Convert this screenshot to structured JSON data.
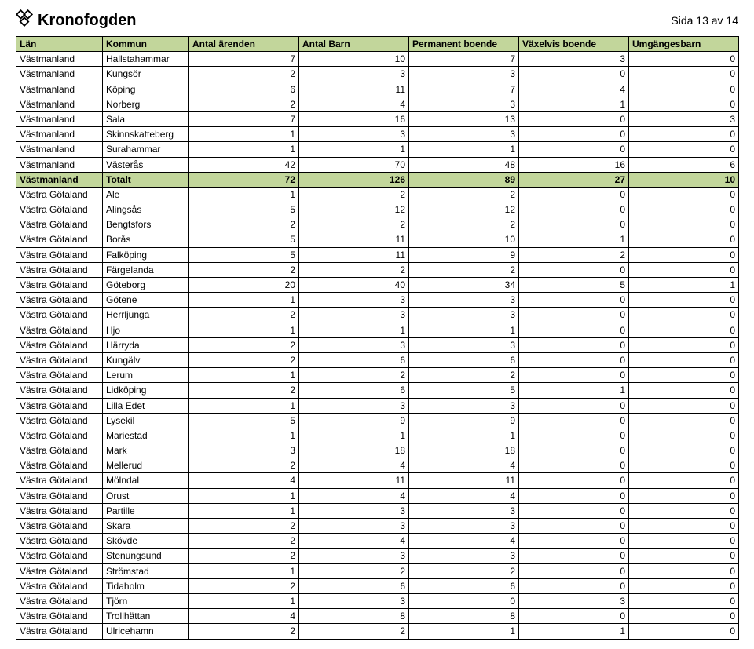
{
  "brand": "Kronofogden",
  "page_label": "Sida 13 av 14",
  "colors": {
    "header_bg": "#c2d69b",
    "border": "#000000",
    "text": "#000000",
    "background": "#ffffff"
  },
  "columns": [
    "Län",
    "Kommun",
    "Antal ärenden",
    "Antal Barn",
    "Permanent boende",
    "Växelvis boende",
    "Umgängesbarn"
  ],
  "rows": [
    {
      "lan": "Västmanland",
      "kommun": "Hallstahammar",
      "v": [
        7,
        10,
        7,
        3,
        0
      ]
    },
    {
      "lan": "Västmanland",
      "kommun": "Kungsör",
      "v": [
        2,
        3,
        3,
        0,
        0
      ]
    },
    {
      "lan": "Västmanland",
      "kommun": "Köping",
      "v": [
        6,
        11,
        7,
        4,
        0
      ]
    },
    {
      "lan": "Västmanland",
      "kommun": "Norberg",
      "v": [
        2,
        4,
        3,
        1,
        0
      ]
    },
    {
      "lan": "Västmanland",
      "kommun": "Sala",
      "v": [
        7,
        16,
        13,
        0,
        3
      ]
    },
    {
      "lan": "Västmanland",
      "kommun": "Skinnskatteberg",
      "v": [
        1,
        3,
        3,
        0,
        0
      ]
    },
    {
      "lan": "Västmanland",
      "kommun": "Surahammar",
      "v": [
        1,
        1,
        1,
        0,
        0
      ]
    },
    {
      "lan": "Västmanland",
      "kommun": "Västerås",
      "v": [
        42,
        70,
        48,
        16,
        6
      ]
    },
    {
      "lan": "Västmanland",
      "kommun": "Totalt",
      "v": [
        72,
        126,
        89,
        27,
        10
      ],
      "totalt": true
    },
    {
      "lan": "Västra Götaland",
      "kommun": "Ale",
      "v": [
        1,
        2,
        2,
        0,
        0
      ]
    },
    {
      "lan": "Västra Götaland",
      "kommun": "Alingsås",
      "v": [
        5,
        12,
        12,
        0,
        0
      ]
    },
    {
      "lan": "Västra Götaland",
      "kommun": "Bengtsfors",
      "v": [
        2,
        2,
        2,
        0,
        0
      ]
    },
    {
      "lan": "Västra Götaland",
      "kommun": "Borås",
      "v": [
        5,
        11,
        10,
        1,
        0
      ]
    },
    {
      "lan": "Västra Götaland",
      "kommun": "Falköping",
      "v": [
        5,
        11,
        9,
        2,
        0
      ]
    },
    {
      "lan": "Västra Götaland",
      "kommun": "Färgelanda",
      "v": [
        2,
        2,
        2,
        0,
        0
      ]
    },
    {
      "lan": "Västra Götaland",
      "kommun": "Göteborg",
      "v": [
        20,
        40,
        34,
        5,
        1
      ]
    },
    {
      "lan": "Västra Götaland",
      "kommun": "Götene",
      "v": [
        1,
        3,
        3,
        0,
        0
      ]
    },
    {
      "lan": "Västra Götaland",
      "kommun": "Herrljunga",
      "v": [
        2,
        3,
        3,
        0,
        0
      ]
    },
    {
      "lan": "Västra Götaland",
      "kommun": "Hjo",
      "v": [
        1,
        1,
        1,
        0,
        0
      ]
    },
    {
      "lan": "Västra Götaland",
      "kommun": "Härryda",
      "v": [
        2,
        3,
        3,
        0,
        0
      ]
    },
    {
      "lan": "Västra Götaland",
      "kommun": "Kungälv",
      "v": [
        2,
        6,
        6,
        0,
        0
      ]
    },
    {
      "lan": "Västra Götaland",
      "kommun": "Lerum",
      "v": [
        1,
        2,
        2,
        0,
        0
      ]
    },
    {
      "lan": "Västra Götaland",
      "kommun": "Lidköping",
      "v": [
        2,
        6,
        5,
        1,
        0
      ]
    },
    {
      "lan": "Västra Götaland",
      "kommun": "Lilla Edet",
      "v": [
        1,
        3,
        3,
        0,
        0
      ]
    },
    {
      "lan": "Västra Götaland",
      "kommun": "Lysekil",
      "v": [
        5,
        9,
        9,
        0,
        0
      ]
    },
    {
      "lan": "Västra Götaland",
      "kommun": "Mariestad",
      "v": [
        1,
        1,
        1,
        0,
        0
      ]
    },
    {
      "lan": "Västra Götaland",
      "kommun": "Mark",
      "v": [
        3,
        18,
        18,
        0,
        0
      ]
    },
    {
      "lan": "Västra Götaland",
      "kommun": "Mellerud",
      "v": [
        2,
        4,
        4,
        0,
        0
      ]
    },
    {
      "lan": "Västra Götaland",
      "kommun": "Mölndal",
      "v": [
        4,
        11,
        11,
        0,
        0
      ]
    },
    {
      "lan": "Västra Götaland",
      "kommun": "Orust",
      "v": [
        1,
        4,
        4,
        0,
        0
      ]
    },
    {
      "lan": "Västra Götaland",
      "kommun": "Partille",
      "v": [
        1,
        3,
        3,
        0,
        0
      ]
    },
    {
      "lan": "Västra Götaland",
      "kommun": "Skara",
      "v": [
        2,
        3,
        3,
        0,
        0
      ]
    },
    {
      "lan": "Västra Götaland",
      "kommun": "Skövde",
      "v": [
        2,
        4,
        4,
        0,
        0
      ]
    },
    {
      "lan": "Västra Götaland",
      "kommun": "Stenungsund",
      "v": [
        2,
        3,
        3,
        0,
        0
      ]
    },
    {
      "lan": "Västra Götaland",
      "kommun": "Strömstad",
      "v": [
        1,
        2,
        2,
        0,
        0
      ]
    },
    {
      "lan": "Västra Götaland",
      "kommun": "Tidaholm",
      "v": [
        2,
        6,
        6,
        0,
        0
      ]
    },
    {
      "lan": "Västra Götaland",
      "kommun": "Tjörn",
      "v": [
        1,
        3,
        0,
        3,
        0
      ]
    },
    {
      "lan": "Västra Götaland",
      "kommun": "Trollhättan",
      "v": [
        4,
        8,
        8,
        0,
        0
      ]
    },
    {
      "lan": "Västra Götaland",
      "kommun": "Ulricehamn",
      "v": [
        2,
        2,
        1,
        1,
        0
      ]
    }
  ]
}
